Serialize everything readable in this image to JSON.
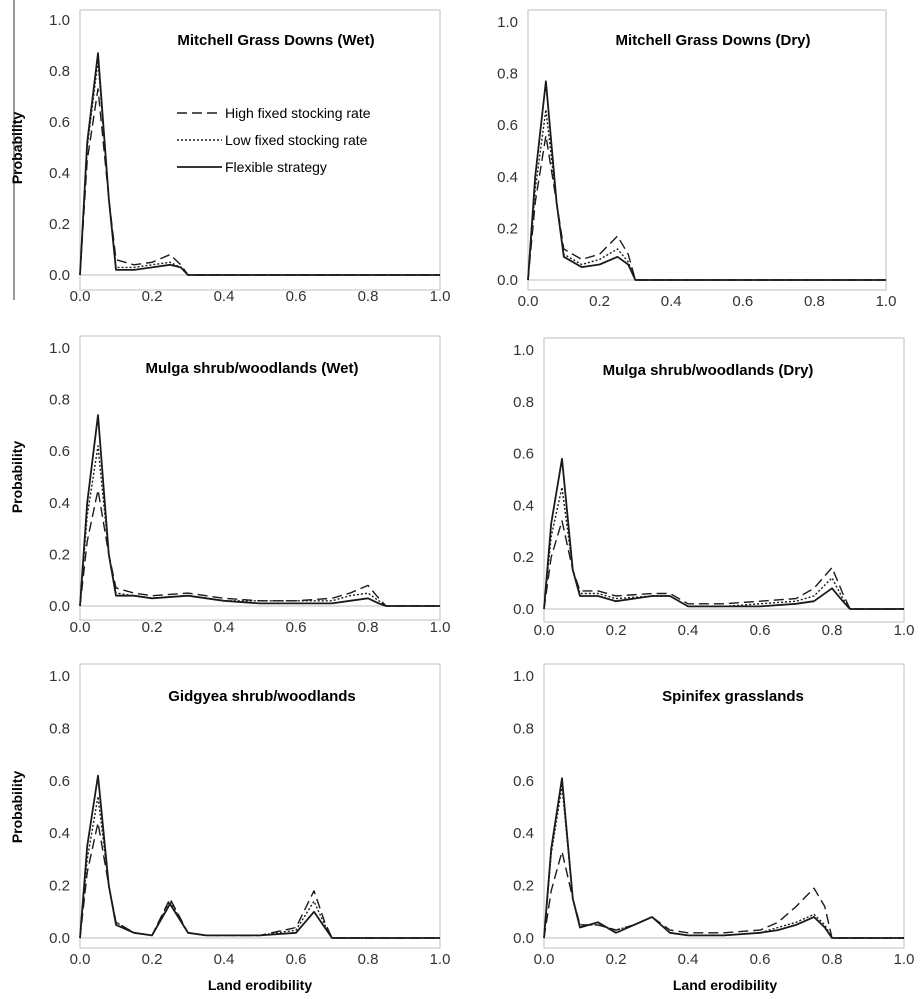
{
  "chart_data": [
    {
      "type": "line",
      "title": "Mitchell Grass Downs (Wet)",
      "xlabel": "",
      "ylabel": "Probability",
      "xlim": [
        0,
        1
      ],
      "ylim": [
        0,
        1
      ],
      "xticks": [
        "0.0",
        "0.2",
        "0.4",
        "0.6",
        "0.8",
        "1.0"
      ],
      "yticks": [
        "0.0",
        "0.2",
        "0.4",
        "0.6",
        "0.8",
        "1.0"
      ],
      "legend": {
        "placement": "upper-middle",
        "entries": [
          "High fixed stocking rate",
          "Low fixed stocking rate",
          "Flexible strategy"
        ]
      },
      "series": [
        {
          "name": "High fixed stocking rate",
          "dash": "10,5",
          "x": [
            0,
            0.02,
            0.05,
            0.08,
            0.1,
            0.15,
            0.2,
            0.25,
            0.28,
            0.3,
            0.35,
            1.0
          ],
          "y": [
            0,
            0.45,
            0.73,
            0.3,
            0.06,
            0.04,
            0.05,
            0.08,
            0.04,
            0,
            0,
            0
          ]
        },
        {
          "name": "Low fixed stocking rate",
          "dash": "2,2",
          "x": [
            0,
            0.02,
            0.05,
            0.08,
            0.1,
            0.15,
            0.2,
            0.25,
            0.28,
            0.3,
            0.35,
            1.0
          ],
          "y": [
            0,
            0.5,
            0.84,
            0.3,
            0.03,
            0.03,
            0.04,
            0.05,
            0.03,
            0,
            0,
            0
          ]
        },
        {
          "name": "Flexible strategy",
          "dash": "",
          "x": [
            0,
            0.02,
            0.05,
            0.08,
            0.1,
            0.15,
            0.2,
            0.25,
            0.28,
            0.3,
            0.35,
            1.0
          ],
          "y": [
            0,
            0.52,
            0.87,
            0.3,
            0.02,
            0.02,
            0.03,
            0.04,
            0.03,
            0,
            0,
            0
          ]
        }
      ]
    },
    {
      "type": "line",
      "title": "Mitchell Grass Downs (Dry)",
      "xlabel": "",
      "ylabel": "",
      "xlim": [
        0,
        1
      ],
      "ylim": [
        0,
        1
      ],
      "xticks": [
        "0.0",
        "0.2",
        "0.4",
        "0.6",
        "0.8",
        "1.0"
      ],
      "yticks": [
        "0.0",
        "0.2",
        "0.4",
        "0.6",
        "0.8",
        "1.0"
      ],
      "series": [
        {
          "name": "High fixed stocking rate",
          "dash": "10,5",
          "x": [
            0,
            0.02,
            0.05,
            0.08,
            0.1,
            0.15,
            0.2,
            0.25,
            0.28,
            0.3,
            0.35,
            1.0
          ],
          "y": [
            0,
            0.3,
            0.56,
            0.3,
            0.12,
            0.08,
            0.1,
            0.17,
            0.1,
            0,
            0,
            0
          ]
        },
        {
          "name": "Low fixed stocking rate",
          "dash": "2,2",
          "x": [
            0,
            0.02,
            0.05,
            0.08,
            0.1,
            0.15,
            0.2,
            0.25,
            0.28,
            0.3,
            0.35,
            1.0
          ],
          "y": [
            0,
            0.35,
            0.66,
            0.3,
            0.1,
            0.06,
            0.08,
            0.12,
            0.07,
            0,
            0,
            0
          ]
        },
        {
          "name": "Flexible strategy",
          "dash": "",
          "x": [
            0,
            0.02,
            0.05,
            0.08,
            0.1,
            0.15,
            0.2,
            0.25,
            0.28,
            0.3,
            0.35,
            1.0
          ],
          "y": [
            0,
            0.4,
            0.77,
            0.3,
            0.09,
            0.05,
            0.06,
            0.09,
            0.06,
            0,
            0,
            0
          ]
        }
      ]
    },
    {
      "type": "line",
      "title": "Mulga shrub/woodlands (Wet)",
      "xlabel": "",
      "ylabel": "Probability",
      "xlim": [
        0,
        1
      ],
      "ylim": [
        0,
        1
      ],
      "xticks": [
        "0.0",
        "0.2",
        "0.4",
        "0.6",
        "0.8",
        "1.0"
      ],
      "yticks": [
        "0.0",
        "0.2",
        "0.4",
        "0.6",
        "0.8",
        "1.0"
      ],
      "series": [
        {
          "name": "High fixed stocking rate",
          "dash": "10,5",
          "x": [
            0,
            0.02,
            0.05,
            0.08,
            0.1,
            0.15,
            0.2,
            0.3,
            0.4,
            0.5,
            0.6,
            0.7,
            0.75,
            0.8,
            0.83,
            0.85,
            1.0
          ],
          "y": [
            0,
            0.25,
            0.45,
            0.2,
            0.07,
            0.05,
            0.04,
            0.05,
            0.03,
            0.02,
            0.02,
            0.03,
            0.05,
            0.08,
            0.03,
            0,
            0
          ]
        },
        {
          "name": "Low fixed stocking rate",
          "dash": "2,2",
          "x": [
            0,
            0.02,
            0.05,
            0.08,
            0.1,
            0.15,
            0.2,
            0.3,
            0.4,
            0.5,
            0.6,
            0.7,
            0.75,
            0.8,
            0.83,
            0.85,
            1.0
          ],
          "y": [
            0,
            0.35,
            0.62,
            0.2,
            0.05,
            0.04,
            0.03,
            0.04,
            0.02,
            0.02,
            0.02,
            0.02,
            0.04,
            0.05,
            0.02,
            0,
            0
          ]
        },
        {
          "name": "Flexible strategy",
          "dash": "",
          "x": [
            0,
            0.02,
            0.05,
            0.08,
            0.1,
            0.15,
            0.2,
            0.3,
            0.4,
            0.5,
            0.6,
            0.7,
            0.75,
            0.8,
            0.83,
            0.85,
            1.0
          ],
          "y": [
            0,
            0.4,
            0.74,
            0.2,
            0.04,
            0.04,
            0.03,
            0.04,
            0.02,
            0.01,
            0.01,
            0.01,
            0.02,
            0.03,
            0.01,
            0,
            0
          ]
        }
      ]
    },
    {
      "type": "line",
      "title": "Mulga shrub/woodlands (Dry)",
      "xlabel": "",
      "ylabel": "",
      "xlim": [
        0,
        1
      ],
      "ylim": [
        0,
        1
      ],
      "xticks": [
        "0.0",
        "0.2",
        "0.4",
        "0.6",
        "0.8",
        "1.0"
      ],
      "yticks": [
        "0.0",
        "0.2",
        "0.4",
        "0.6",
        "0.8",
        "1.0"
      ],
      "series": [
        {
          "name": "High fixed stocking rate",
          "dash": "10,5",
          "x": [
            0,
            0.02,
            0.05,
            0.08,
            0.1,
            0.15,
            0.2,
            0.3,
            0.35,
            0.4,
            0.5,
            0.6,
            0.7,
            0.75,
            0.8,
            0.83,
            0.85,
            1.0
          ],
          "y": [
            0,
            0.2,
            0.34,
            0.15,
            0.07,
            0.07,
            0.05,
            0.06,
            0.06,
            0.02,
            0.02,
            0.03,
            0.04,
            0.08,
            0.16,
            0.06,
            0,
            0
          ]
        },
        {
          "name": "Low fixed stocking rate",
          "dash": "2,2",
          "x": [
            0,
            0.02,
            0.05,
            0.08,
            0.1,
            0.15,
            0.2,
            0.3,
            0.35,
            0.4,
            0.5,
            0.6,
            0.7,
            0.75,
            0.8,
            0.83,
            0.85,
            1.0
          ],
          "y": [
            0,
            0.28,
            0.47,
            0.15,
            0.06,
            0.06,
            0.04,
            0.05,
            0.05,
            0.01,
            0.01,
            0.02,
            0.03,
            0.05,
            0.12,
            0.04,
            0,
            0
          ]
        },
        {
          "name": "Flexible strategy",
          "dash": "",
          "x": [
            0,
            0.02,
            0.05,
            0.08,
            0.1,
            0.15,
            0.2,
            0.3,
            0.35,
            0.4,
            0.5,
            0.6,
            0.7,
            0.75,
            0.8,
            0.83,
            0.85,
            1.0
          ],
          "y": [
            0,
            0.33,
            0.58,
            0.15,
            0.05,
            0.05,
            0.03,
            0.05,
            0.05,
            0.01,
            0.01,
            0.01,
            0.02,
            0.03,
            0.08,
            0.03,
            0,
            0
          ]
        }
      ]
    },
    {
      "type": "line",
      "title": "Gidgyea shrub/woodlands",
      "xlabel": "Land erodibility",
      "ylabel": "Probability",
      "xlim": [
        0,
        1
      ],
      "ylim": [
        0,
        1
      ],
      "xticks": [
        "0.0",
        "0.2",
        "0.4",
        "0.6",
        "0.8",
        "1.0"
      ],
      "yticks": [
        "0.0",
        "0.2",
        "0.4",
        "0.6",
        "0.8",
        "1.0"
      ],
      "series": [
        {
          "name": "High fixed stocking rate",
          "dash": "10,5",
          "x": [
            0,
            0.02,
            0.05,
            0.08,
            0.1,
            0.15,
            0.2,
            0.25,
            0.3,
            0.35,
            0.4,
            0.5,
            0.6,
            0.65,
            0.68,
            0.7,
            1.0
          ],
          "y": [
            0,
            0.25,
            0.44,
            0.2,
            0.06,
            0.02,
            0.01,
            0.15,
            0.02,
            0.01,
            0.01,
            0.01,
            0.04,
            0.18,
            0.06,
            0,
            0
          ]
        },
        {
          "name": "Low fixed stocking rate",
          "dash": "2,2",
          "x": [
            0,
            0.02,
            0.05,
            0.08,
            0.1,
            0.15,
            0.2,
            0.25,
            0.3,
            0.35,
            0.4,
            0.5,
            0.6,
            0.65,
            0.68,
            0.7,
            1.0
          ],
          "y": [
            0,
            0.3,
            0.54,
            0.2,
            0.06,
            0.02,
            0.01,
            0.14,
            0.02,
            0.01,
            0.01,
            0.01,
            0.03,
            0.14,
            0.05,
            0,
            0
          ]
        },
        {
          "name": "Flexible strategy",
          "dash": "",
          "x": [
            0,
            0.02,
            0.05,
            0.08,
            0.1,
            0.15,
            0.2,
            0.25,
            0.3,
            0.35,
            0.4,
            0.5,
            0.6,
            0.65,
            0.68,
            0.7,
            1.0
          ],
          "y": [
            0,
            0.35,
            0.62,
            0.2,
            0.05,
            0.02,
            0.01,
            0.13,
            0.02,
            0.01,
            0.01,
            0.01,
            0.02,
            0.1,
            0.04,
            0,
            0
          ]
        }
      ]
    },
    {
      "type": "line",
      "title": "Spinifex grasslands",
      "xlabel": "Land erodibility",
      "ylabel": "",
      "xlim": [
        0,
        1
      ],
      "ylim": [
        0,
        1
      ],
      "xticks": [
        "0.0",
        "0.2",
        "0.4",
        "0.6",
        "0.8",
        "1.0"
      ],
      "yticks": [
        "0.0",
        "0.2",
        "0.4",
        "0.6",
        "0.8",
        "1.0"
      ],
      "series": [
        {
          "name": "High fixed stocking rate",
          "dash": "10,5",
          "x": [
            0,
            0.02,
            0.05,
            0.08,
            0.1,
            0.15,
            0.2,
            0.25,
            0.3,
            0.35,
            0.4,
            0.5,
            0.6,
            0.65,
            0.7,
            0.75,
            0.78,
            0.8,
            1.0
          ],
          "y": [
            0,
            0.18,
            0.33,
            0.15,
            0.05,
            0.05,
            0.03,
            0.05,
            0.08,
            0.03,
            0.02,
            0.02,
            0.03,
            0.06,
            0.12,
            0.19,
            0.12,
            0,
            0
          ]
        },
        {
          "name": "Low fixed stocking rate",
          "dash": "2,2",
          "x": [
            0,
            0.02,
            0.05,
            0.08,
            0.1,
            0.15,
            0.2,
            0.25,
            0.3,
            0.35,
            0.4,
            0.5,
            0.6,
            0.65,
            0.7,
            0.75,
            0.78,
            0.8,
            1.0
          ],
          "y": [
            0,
            0.32,
            0.58,
            0.15,
            0.05,
            0.05,
            0.03,
            0.05,
            0.08,
            0.02,
            0.01,
            0.01,
            0.02,
            0.04,
            0.06,
            0.09,
            0.05,
            0,
            0
          ]
        },
        {
          "name": "Flexible strategy",
          "dash": "",
          "x": [
            0,
            0.02,
            0.05,
            0.08,
            0.1,
            0.15,
            0.2,
            0.25,
            0.3,
            0.35,
            0.4,
            0.5,
            0.6,
            0.65,
            0.7,
            0.75,
            0.78,
            0.8,
            1.0
          ],
          "y": [
            0,
            0.34,
            0.61,
            0.15,
            0.04,
            0.06,
            0.02,
            0.05,
            0.08,
            0.02,
            0.01,
            0.01,
            0.02,
            0.03,
            0.05,
            0.08,
            0.04,
            0,
            0
          ]
        }
      ]
    }
  ]
}
